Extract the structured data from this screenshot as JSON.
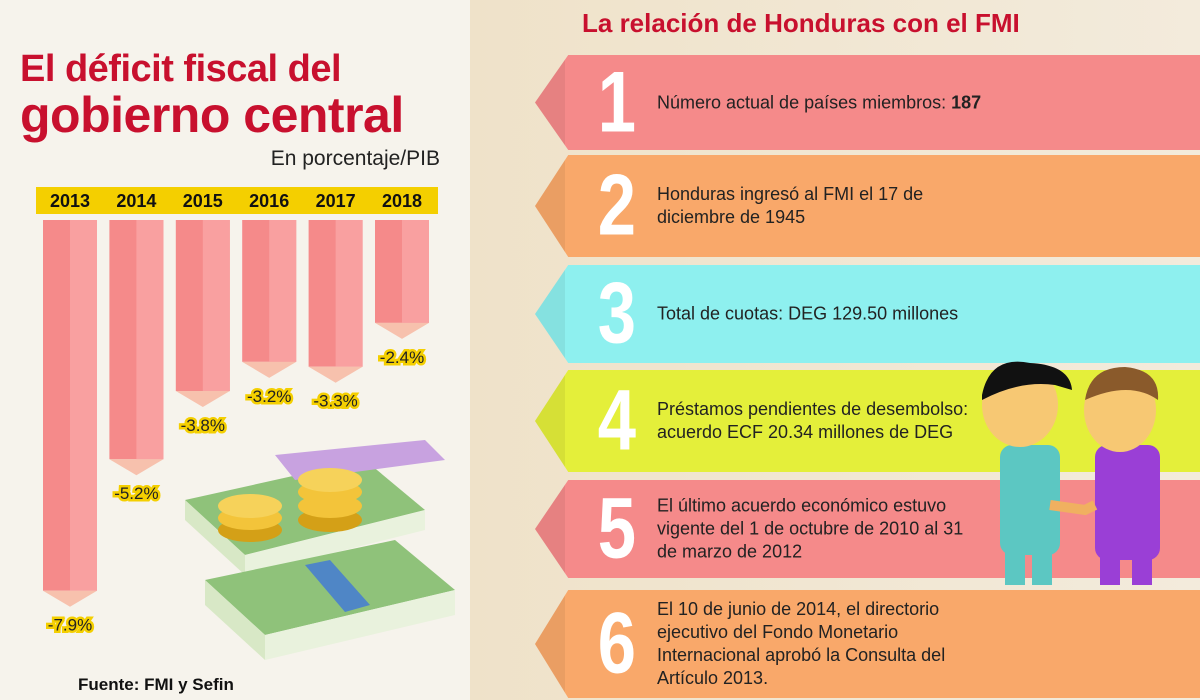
{
  "chart_data": {
    "type": "bar",
    "title": "El déficit fiscal del gobierno central",
    "title_line1": "El déficit fiscal del",
    "title_line2": "gobierno central",
    "subtitle": "En porcentaje/PIB",
    "categories": [
      "2013",
      "2014",
      "2015",
      "2016",
      "2017",
      "2018"
    ],
    "values": [
      -7.9,
      -5.2,
      -3.8,
      -3.2,
      -3.3,
      -2.4
    ],
    "labels": [
      "-7.9%",
      "-5.2%",
      "-3.8%",
      "-3.2%",
      "-3.3%",
      "-2.4%"
    ],
    "ylim": [
      -8,
      0
    ],
    "grid": false,
    "source": "Fuente: FMI y Sefin",
    "colors": {
      "bar": "#f58a8a",
      "tip": "#f7c1ad",
      "label_bg": "#f4cf00",
      "title": "#c8102e"
    }
  },
  "panel": {
    "title": "La relación de Honduras con el FMI",
    "items": [
      {
        "num": "1",
        "text": "Número actual de países miembros: ",
        "bold": "187",
        "color": "#f58a8a"
      },
      {
        "num": "2",
        "text": "Honduras ingresó al FMI el 17 de diciembre de 1945",
        "color": "#f9a86a"
      },
      {
        "num": "3",
        "text": "Total de cuotas: DEG 129.50 millones",
        "color": "#8ef0ef"
      },
      {
        "num": "4",
        "text": "Préstamos pendientes de desembolso: acuerdo ECF 20.34 millones de DEG",
        "color": "#e4ef3a"
      },
      {
        "num": "5",
        "text": "El último acuerdo económico estuvo vigente del 1 de octubre de 2010 al 31 de marzo de 2012",
        "color": "#f58a8a"
      },
      {
        "num": "6",
        "text": "El  10 de junio de  2014, el directorio ejecutivo del Fondo Monetario Internacional aprobó la Consulta del Artículo 2013.",
        "color": "#f9a86a"
      }
    ]
  },
  "icons": [
    "money-stack-icon",
    "gold-coins-icon",
    "handshake-businessmen-icon"
  ]
}
